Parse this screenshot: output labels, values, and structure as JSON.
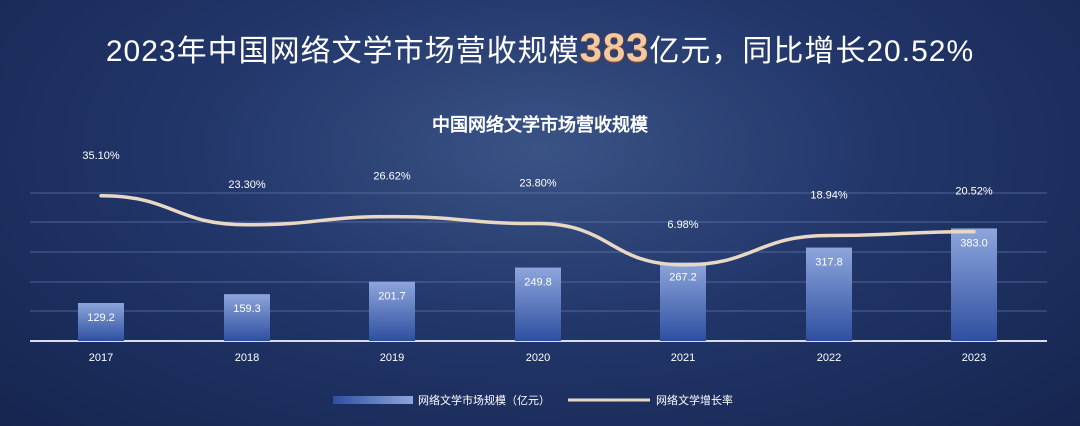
{
  "headline": {
    "prefix": "2023年中国网络文学市场营收规模",
    "highlight": "383",
    "suffix": "亿元，同比增长20.52%"
  },
  "chart_data": {
    "type": "bar",
    "title": "中国网络文学市场营收规模",
    "categories": [
      "2017",
      "2018",
      "2019",
      "2020",
      "2021",
      "2022",
      "2023"
    ],
    "series": [
      {
        "name": "网络文学市场规模（亿元）",
        "type": "bar",
        "values": [
          129.2,
          159.3,
          201.7,
          249.8,
          267.2,
          317.8,
          383.0
        ],
        "labels": [
          "129.2",
          "159.3",
          "201.7",
          "249.8",
          "267.2",
          "317.8",
          "383.0"
        ]
      },
      {
        "name": "网络文学增长率",
        "type": "line",
        "values": [
          35.1,
          23.3,
          26.62,
          23.8,
          6.98,
          18.94,
          20.52
        ],
        "labels": [
          "35.10%",
          "23.30%",
          "26.62%",
          "23.80%",
          "6.98%",
          "18.94%",
          "20.52%"
        ]
      }
    ],
    "legend_position": "bottom",
    "grid": true,
    "colors": {
      "bar_top": "#8ea6dc",
      "bar_bottom": "#2e4fa0",
      "line": "#e9d9c4"
    }
  }
}
